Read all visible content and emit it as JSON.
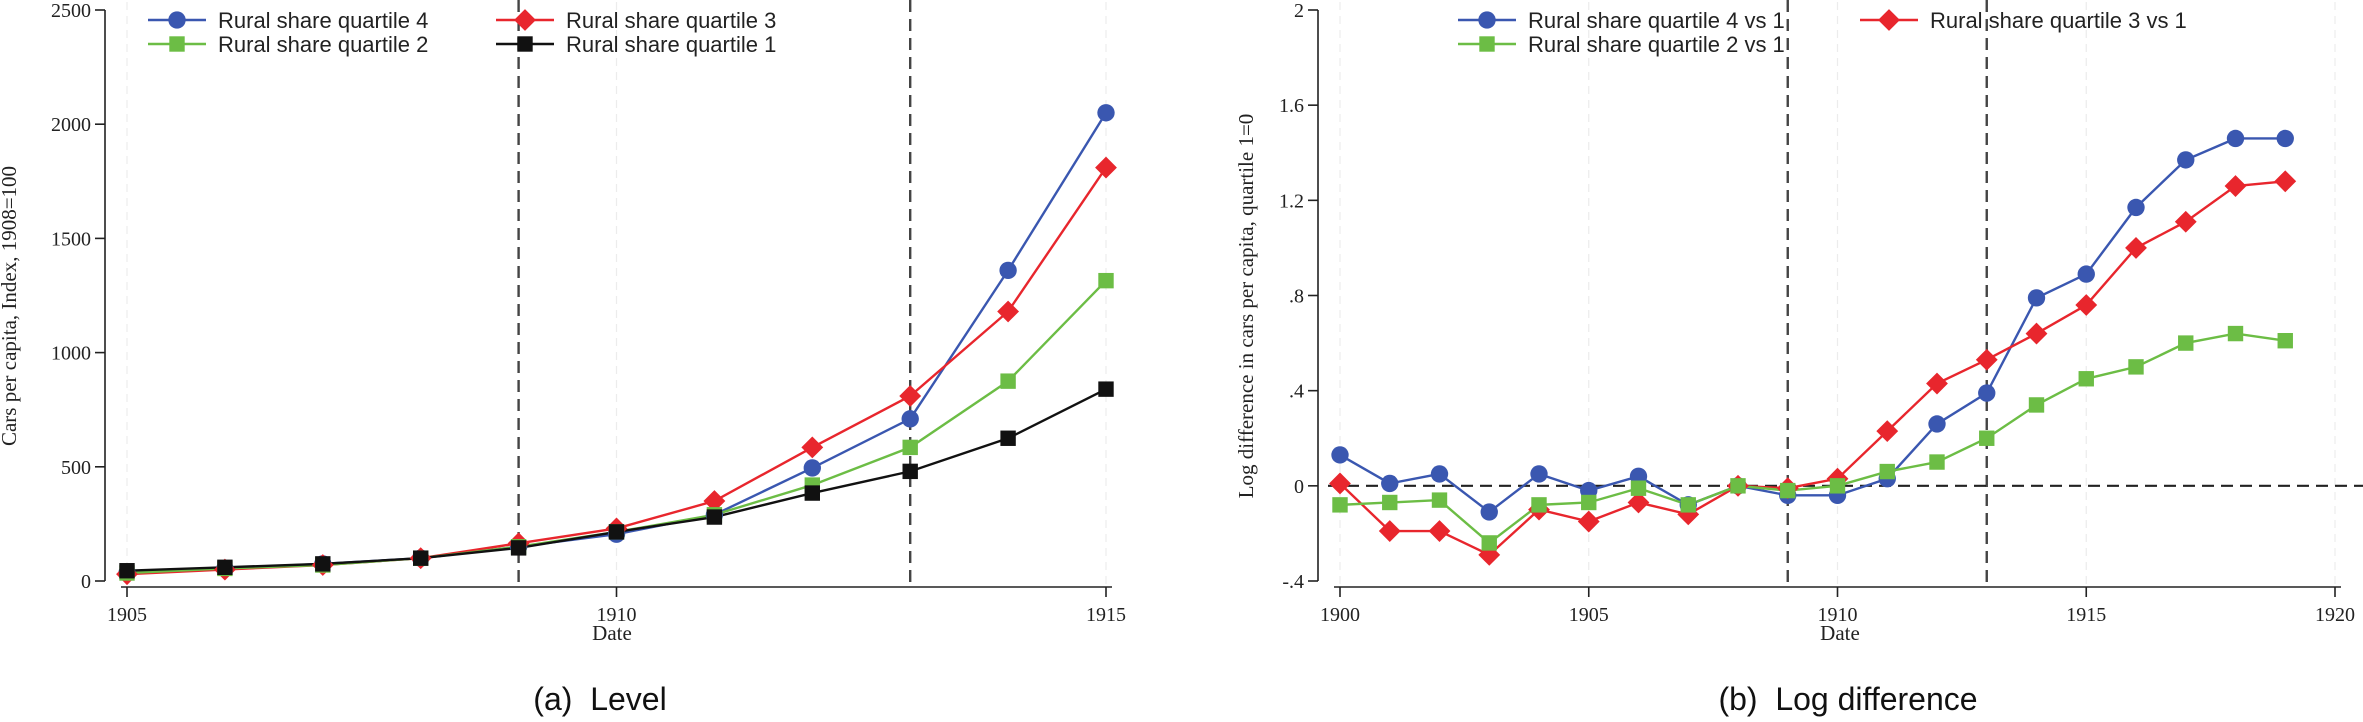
{
  "chart_data": [
    {
      "type": "line",
      "caption": "(a)  Level",
      "xlabel": "Date",
      "ylabel": "Cars per capita, Index, 1908=100",
      "xlim": [
        1905,
        1915
      ],
      "ylim": [
        0,
        2500
      ],
      "xticks": [
        1905,
        1910,
        1915
      ],
      "yticks": [
        0,
        500,
        1000,
        1500,
        2000,
        2500
      ],
      "ytick_labels": [
        "0",
        "500",
        "1000",
        "1500",
        "2000",
        "2500"
      ],
      "vlines": [
        1909,
        1913
      ],
      "legend": "top-left",
      "x": [
        1905,
        1906,
        1907,
        1908,
        1909,
        1910,
        1911,
        1912,
        1913,
        1914,
        1915
      ],
      "series": [
        {
          "name": "Rural share quartile 4",
          "color": "#3a57b0",
          "marker": "circle",
          "values": [
            35,
            55,
            75,
            100,
            150,
            205,
            290,
            495,
            710,
            1360,
            2050
          ]
        },
        {
          "name": "Rural share quartile 3",
          "color": "#e8262d",
          "marker": "diamond",
          "values": [
            30,
            50,
            70,
            100,
            165,
            230,
            350,
            585,
            810,
            1180,
            1810
          ]
        },
        {
          "name": "Rural share quartile 2",
          "color": "#6cbd45",
          "marker": "square",
          "values": [
            35,
            55,
            70,
            100,
            150,
            215,
            290,
            420,
            585,
            875,
            1315
          ]
        },
        {
          "name": "Rural share quartile 1",
          "color": "#111111",
          "marker": "square",
          "values": [
            45,
            60,
            75,
            100,
            145,
            215,
            280,
            385,
            480,
            625,
            840
          ]
        }
      ]
    },
    {
      "type": "line",
      "caption": "(b)  Log difference",
      "xlabel": "Date",
      "ylabel": "Log difference in cars per capita, quartile 1=0",
      "xlim": [
        1900,
        1920
      ],
      "ylim": [
        -0.4,
        2.0
      ],
      "xticks": [
        1900,
        1905,
        1910,
        1915,
        1920
      ],
      "yticks": [
        -0.4,
        0,
        0.4,
        0.8,
        1.2,
        1.6,
        2.0
      ],
      "ytick_labels": [
        "-.4",
        "0",
        ".4",
        ".8",
        "1.2",
        "1.6",
        "2"
      ],
      "vlines": [
        1909,
        1913
      ],
      "hline": 0,
      "legend": "top",
      "x": [
        1900,
        1901,
        1902,
        1903,
        1904,
        1905,
        1906,
        1907,
        1908,
        1909,
        1910,
        1911,
        1912,
        1913,
        1914,
        1915,
        1916,
        1917,
        1918,
        1919
      ],
      "series": [
        {
          "name": "Rural share quartile 4 vs 1",
          "color": "#3a57b0",
          "marker": "circle",
          "values": [
            0.13,
            0.01,
            0.05,
            -0.11,
            0.05,
            -0.02,
            0.04,
            -0.08,
            0.0,
            -0.04,
            -0.04,
            0.03,
            0.26,
            0.39,
            0.79,
            0.89,
            1.17,
            1.37,
            1.46,
            1.46
          ]
        },
        {
          "name": "Rural share quartile 3 vs 1",
          "color": "#e8262d",
          "marker": "diamond",
          "values": [
            0.01,
            -0.19,
            -0.19,
            -0.29,
            -0.1,
            -0.15,
            -0.07,
            -0.12,
            0.0,
            -0.01,
            0.03,
            0.23,
            0.43,
            0.53,
            0.64,
            0.76,
            1.0,
            1.11,
            1.26,
            1.28
          ]
        },
        {
          "name": "Rural share quartile 2 vs 1",
          "color": "#6cbd45",
          "marker": "square",
          "values": [
            -0.08,
            -0.07,
            -0.06,
            -0.24,
            -0.08,
            -0.07,
            -0.01,
            -0.08,
            0.0,
            -0.02,
            0.0,
            0.06,
            0.1,
            0.2,
            0.34,
            0.45,
            0.5,
            0.6,
            0.64,
            0.61
          ]
        }
      ]
    }
  ]
}
